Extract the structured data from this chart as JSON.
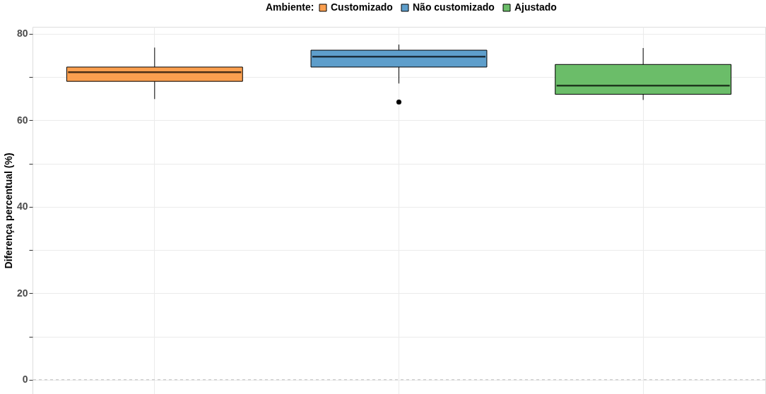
{
  "chart_data": {
    "type": "box",
    "ylabel": "Diferença percentual (%)",
    "legend_title": "Ambiente:",
    "legend": "top",
    "categories": [
      null,
      null,
      null
    ],
    "series": [
      {
        "name": "Customizado",
        "color": "#fb9f4f",
        "boxes": [
          {
            "low": 64.9,
            "q1": 69.0,
            "median": 71.1,
            "q3": 72.3,
            "high": 76.8
          },
          null,
          null
        ]
      },
      {
        "name": "Não customizado",
        "color": "#5e9ecb",
        "boxes": [
          null,
          {
            "low": 68.5,
            "q1": 72.3,
            "median": 74.7,
            "q3": 76.2,
            "high": 77.5,
            "outliers": [
              64.2
            ]
          },
          null
        ]
      },
      {
        "name": "Ajustado",
        "color": "#6bbd69",
        "boxes": [
          null,
          null,
          {
            "low": 64.7,
            "q1": 66.0,
            "median": 68.0,
            "q3": 72.9,
            "high": 76.7
          }
        ]
      }
    ],
    "ylim": [
      -3.3,
      81.6
    ],
    "yticks": [
      0,
      {
        "value": 10,
        "label": null
      },
      20,
      {
        "value": 30,
        "label": null
      },
      40,
      {
        "value": 50,
        "label": null
      },
      60,
      {
        "value": 70,
        "label": null
      },
      80
    ],
    "grid": true,
    "tick_labels": "y",
    "ref_lines": [
      {
        "axis": "y",
        "value": 0,
        "color": "#bbbbbb",
        "line_style": "dashed"
      }
    ]
  }
}
